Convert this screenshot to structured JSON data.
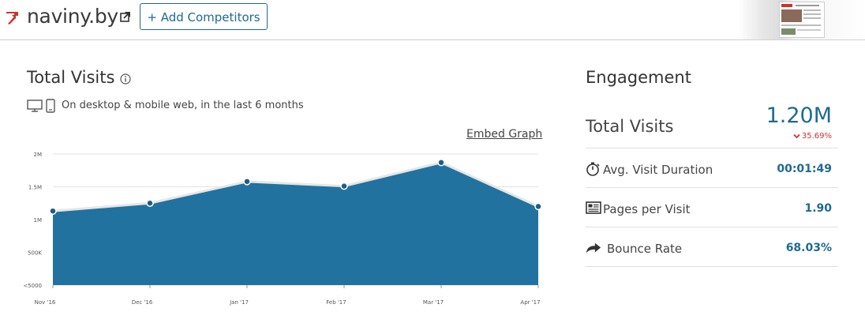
{
  "header": {
    "site_name": "naviny.by",
    "add_competitors_label": "+ Add Competitors"
  },
  "traffic": {
    "title": "Total Visits",
    "device_note": "On desktop & mobile web, in the last 6 months",
    "embed_label": "Embed Graph"
  },
  "engagement": {
    "title": "Engagement",
    "total_visits_label": "Total Visits",
    "total_visits_value": "1.20M",
    "total_visits_change": "35.69%",
    "metrics": [
      {
        "label": "Avg. Visit Duration",
        "value": "00:01:49",
        "icon": "stopwatch-icon"
      },
      {
        "label": "Pages per Visit",
        "value": "1.90",
        "icon": "pages-icon"
      },
      {
        "label": "Bounce Rate",
        "value": "68.03%",
        "icon": "bounce-arrow-icon"
      }
    ]
  },
  "colors": {
    "accent": "#1f6a92",
    "area_fill": "#21729f",
    "negative": "#d0312d"
  },
  "chart_data": {
    "type": "area",
    "categories": [
      "Nov '16",
      "Dec '16",
      "Jan '17",
      "Feb '17",
      "Mar '17",
      "Apr '17"
    ],
    "values": [
      1130000,
      1250000,
      1580000,
      1510000,
      1870000,
      1200000
    ],
    "y_ticks": [
      "2M",
      "1.5M",
      "1M",
      "500K",
      "<5000"
    ],
    "ylim": [
      0,
      2000000
    ],
    "grid": true
  }
}
